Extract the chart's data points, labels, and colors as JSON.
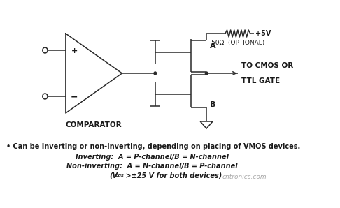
{
  "bg_color": "#ffffff",
  "line_color": "#2a2a2a",
  "text_color": "#1a1a1a",
  "bullet_text": "• Can be inverting or non-inverting, depending on placing of VMOS devices.",
  "line2": "Inverting:  A = P-channel/B = N-channel",
  "line3": "Non-inverting:  A = N-channel/B = P-channel",
  "line4_main": "(V",
  "line4_sub": "bqs",
  "line4_post": " >±25 V for both devices)",
  "comparator_label": "COMPARATOR",
  "label_A": "A",
  "label_B": "B",
  "label_5V": "+5V",
  "label_resistor": "50Ω  (OPTIONAL)",
  "label_out1": "TO CMOS OR",
  "label_out2": "TTL GATE",
  "watermark": "cntronics.com"
}
